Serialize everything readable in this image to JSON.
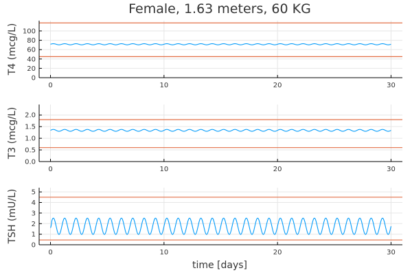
{
  "title": "Female, 1.63 meters, 60 KG",
  "xlabel": "time [days]",
  "colors": {
    "series": "#009AFA",
    "bounds": "#E26F46"
  },
  "chart_data": [
    {
      "type": "line",
      "ylabel": "T4 (mcg/L)",
      "xlim": [
        -1,
        31
      ],
      "ylim": [
        0,
        122
      ],
      "xticks": [
        0,
        10,
        20,
        30
      ],
      "yticks": [
        0,
        20,
        40,
        60,
        80,
        100
      ],
      "grid": true,
      "series": [
        {
          "kind": "oscillation",
          "mean": 71.5,
          "amplitude": 1.2,
          "period_days": 1,
          "x_range": [
            0,
            30
          ]
        }
      ],
      "reference_lines": [
        {
          "y": 45
        },
        {
          "y": 117
        }
      ]
    },
    {
      "type": "line",
      "ylabel": "T3 (mcg/L)",
      "xlim": [
        -1,
        31
      ],
      "ylim": [
        0,
        2.45
      ],
      "xticks": [
        0,
        10,
        20,
        30
      ],
      "yticks": [
        0.0,
        0.5,
        1.0,
        1.5,
        2.0
      ],
      "ytick_labels": [
        "0.0",
        "0.5",
        "1.0",
        "1.5",
        "2.0"
      ],
      "grid": true,
      "series": [
        {
          "kind": "oscillation",
          "mean": 1.34,
          "amplitude": 0.04,
          "period_days": 1,
          "x_range": [
            0,
            30
          ]
        }
      ],
      "reference_lines": [
        {
          "y": 0.6
        },
        {
          "y": 1.8
        }
      ]
    },
    {
      "type": "line",
      "ylabel": "TSH (mU/L)",
      "xlim": [
        -1,
        31
      ],
      "ylim": [
        0,
        5.4
      ],
      "xticks": [
        0,
        10,
        20,
        30
      ],
      "yticks": [
        0,
        1,
        2,
        3,
        4,
        5
      ],
      "grid": true,
      "series": [
        {
          "kind": "oscillation",
          "mean": 1.75,
          "amplitude": 0.77,
          "period_days": 1,
          "x_range": [
            0,
            30
          ],
          "start_value": 1.6
        }
      ],
      "reference_lines": [
        {
          "y": 0.45
        },
        {
          "y": 4.5
        }
      ]
    }
  ]
}
